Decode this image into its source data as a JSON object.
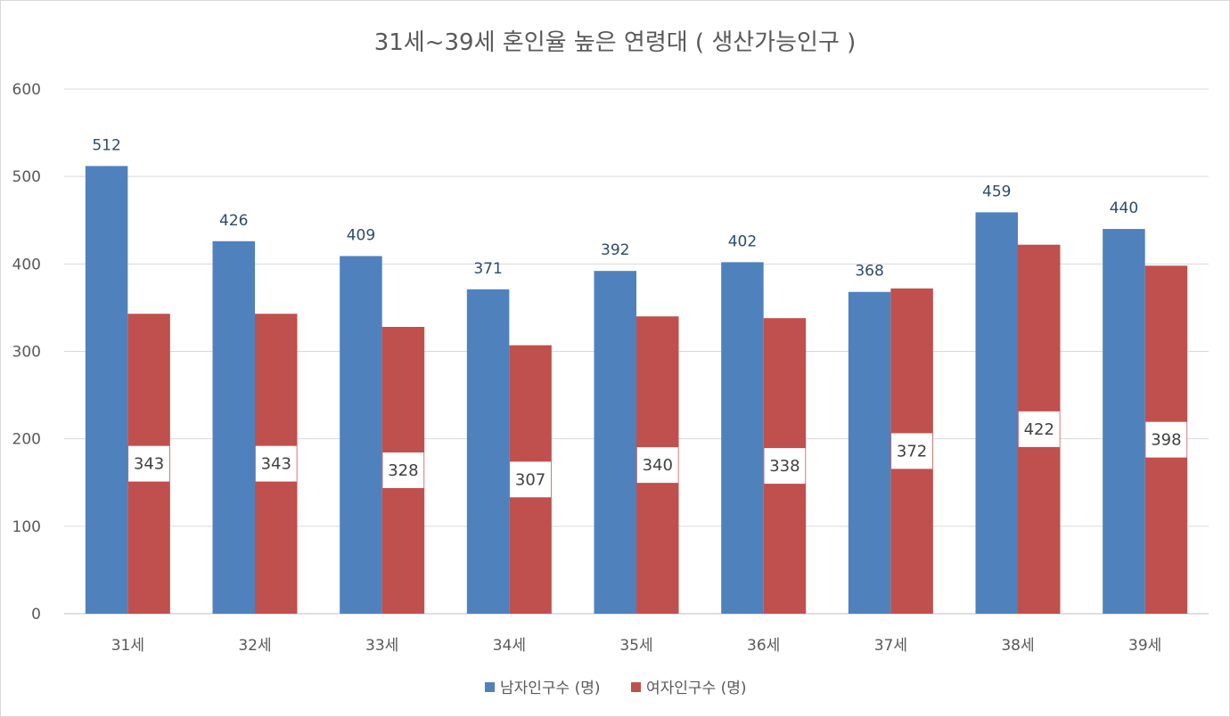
{
  "chart_data": {
    "type": "bar",
    "title": "31세~39세 혼인율 높은 연령대 ( 생산가능인구 )",
    "categories": [
      "31세",
      "32세",
      "33세",
      "34세",
      "35세",
      "36세",
      "37세",
      "38세",
      "39세"
    ],
    "series": [
      {
        "name": "남자인구수 (명)",
        "color": "#4f81bd",
        "values": [
          512,
          426,
          409,
          371,
          392,
          402,
          368,
          459,
          440
        ]
      },
      {
        "name": "여자인구수 (명)",
        "color": "#c0504d",
        "values": [
          343,
          343,
          328,
          307,
          340,
          338,
          372,
          422,
          398
        ]
      }
    ],
    "ylim": [
      0,
      600
    ],
    "yticks": [
      0,
      100,
      200,
      300,
      400,
      500,
      600
    ],
    "grid": true,
    "legend": "bottom-center",
    "data_labels": {
      "male": "above-bar",
      "female": "inside-middle-white-box"
    }
  }
}
